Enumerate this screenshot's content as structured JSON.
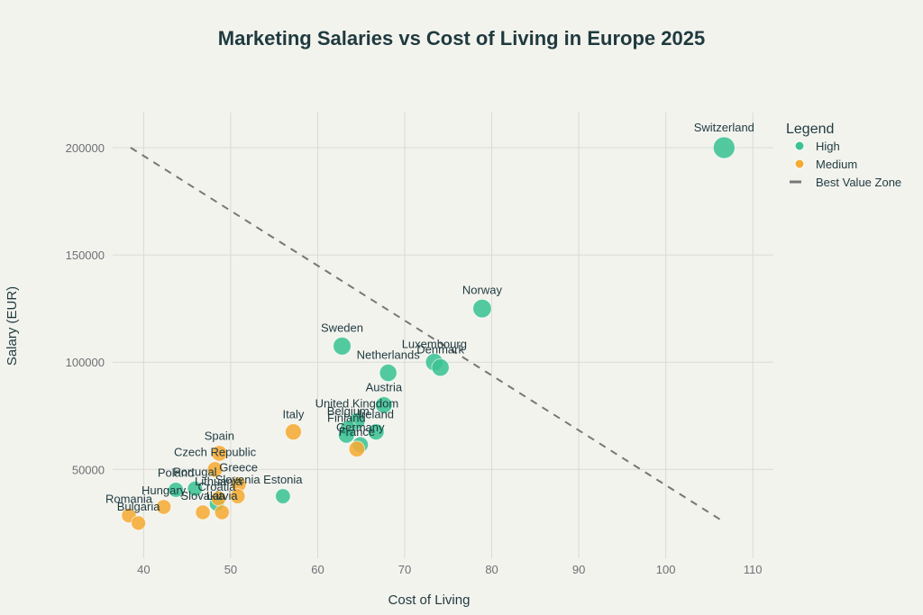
{
  "chart_data": {
    "type": "scatter",
    "title": "Marketing Salaries vs Cost of Living in Europe 2025",
    "xlabel": "Cost of Living",
    "ylabel": "Salary (EUR)",
    "xlim": [
      36.5,
      112
    ],
    "ylim": [
      12000,
      215000
    ],
    "x_ticks": [
      40,
      50,
      60,
      70,
      80,
      90,
      100,
      110
    ],
    "y_ticks": [
      50000,
      100000,
      150000,
      200000
    ],
    "grid": true,
    "legend": {
      "title": "Legend",
      "placement": "right",
      "entries": [
        {
          "name": "High",
          "color": "#3cc394",
          "kind": "marker"
        },
        {
          "name": "Medium",
          "color": "#f5ab35",
          "kind": "marker"
        },
        {
          "name": "Best Value Zone",
          "color": "#777777",
          "kind": "dashed-line"
        }
      ]
    },
    "colors": {
      "High": "#3cc394",
      "Medium": "#f5ab35",
      "trend": "#777777"
    },
    "series": [
      {
        "name": "High",
        "points": [
          {
            "label": "Switzerland",
            "x": 106.7,
            "y": 200000
          },
          {
            "label": "Norway",
            "x": 78.9,
            "y": 125000
          },
          {
            "label": "Sweden",
            "x": 62.8,
            "y": 107500
          },
          {
            "label": "Luxembourg",
            "x": 73.4,
            "y": 100000
          },
          {
            "label": "Denmark",
            "x": 74.1,
            "y": 97500
          },
          {
            "label": "Netherlands",
            "x": 68.1,
            "y": 95000
          },
          {
            "label": "Austria",
            "x": 67.6,
            "y": 80000
          },
          {
            "label": "United Kingdom",
            "x": 64.5,
            "y": 72500
          },
          {
            "label": "Belgium",
            "x": 63.5,
            "y": 69000
          },
          {
            "label": "Ireland",
            "x": 66.7,
            "y": 67500
          },
          {
            "label": "Finland",
            "x": 63.3,
            "y": 66000
          },
          {
            "label": "Germany",
            "x": 64.9,
            "y": 61500
          },
          {
            "label": "Estonia",
            "x": 56.0,
            "y": 37500
          },
          {
            "label": "Poland",
            "x": 43.7,
            "y": 40500
          },
          {
            "label": "Portugal",
            "x": 45.9,
            "y": 41000
          },
          {
            "label": "Croatia",
            "x": 48.4,
            "y": 34000
          }
        ]
      },
      {
        "name": "Medium",
        "points": [
          {
            "label": "France",
            "x": 64.5,
            "y": 59500
          },
          {
            "label": "Italy",
            "x": 57.2,
            "y": 67500
          },
          {
            "label": "Spain",
            "x": 48.7,
            "y": 57500
          },
          {
            "label": "Czech Republic",
            "x": 48.2,
            "y": 50000
          },
          {
            "label": "Greece",
            "x": 50.9,
            "y": 43000
          },
          {
            "label": "Slovenia",
            "x": 50.8,
            "y": 37500
          },
          {
            "label": "Lithuania",
            "x": 48.6,
            "y": 36500
          },
          {
            "label": "Latvia",
            "x": 49.0,
            "y": 30000
          },
          {
            "label": "Slovakia",
            "x": 46.8,
            "y": 30000
          },
          {
            "label": "Hungary",
            "x": 42.3,
            "y": 32500
          },
          {
            "label": "Romania",
            "x": 38.3,
            "y": 28500
          },
          {
            "label": "Bulgaria",
            "x": 39.4,
            "y": 25000
          }
        ]
      }
    ],
    "trend_line": {
      "name": "Best Value Zone",
      "x": [
        38.5,
        106.5
      ],
      "y": [
        200000,
        26000
      ]
    }
  }
}
